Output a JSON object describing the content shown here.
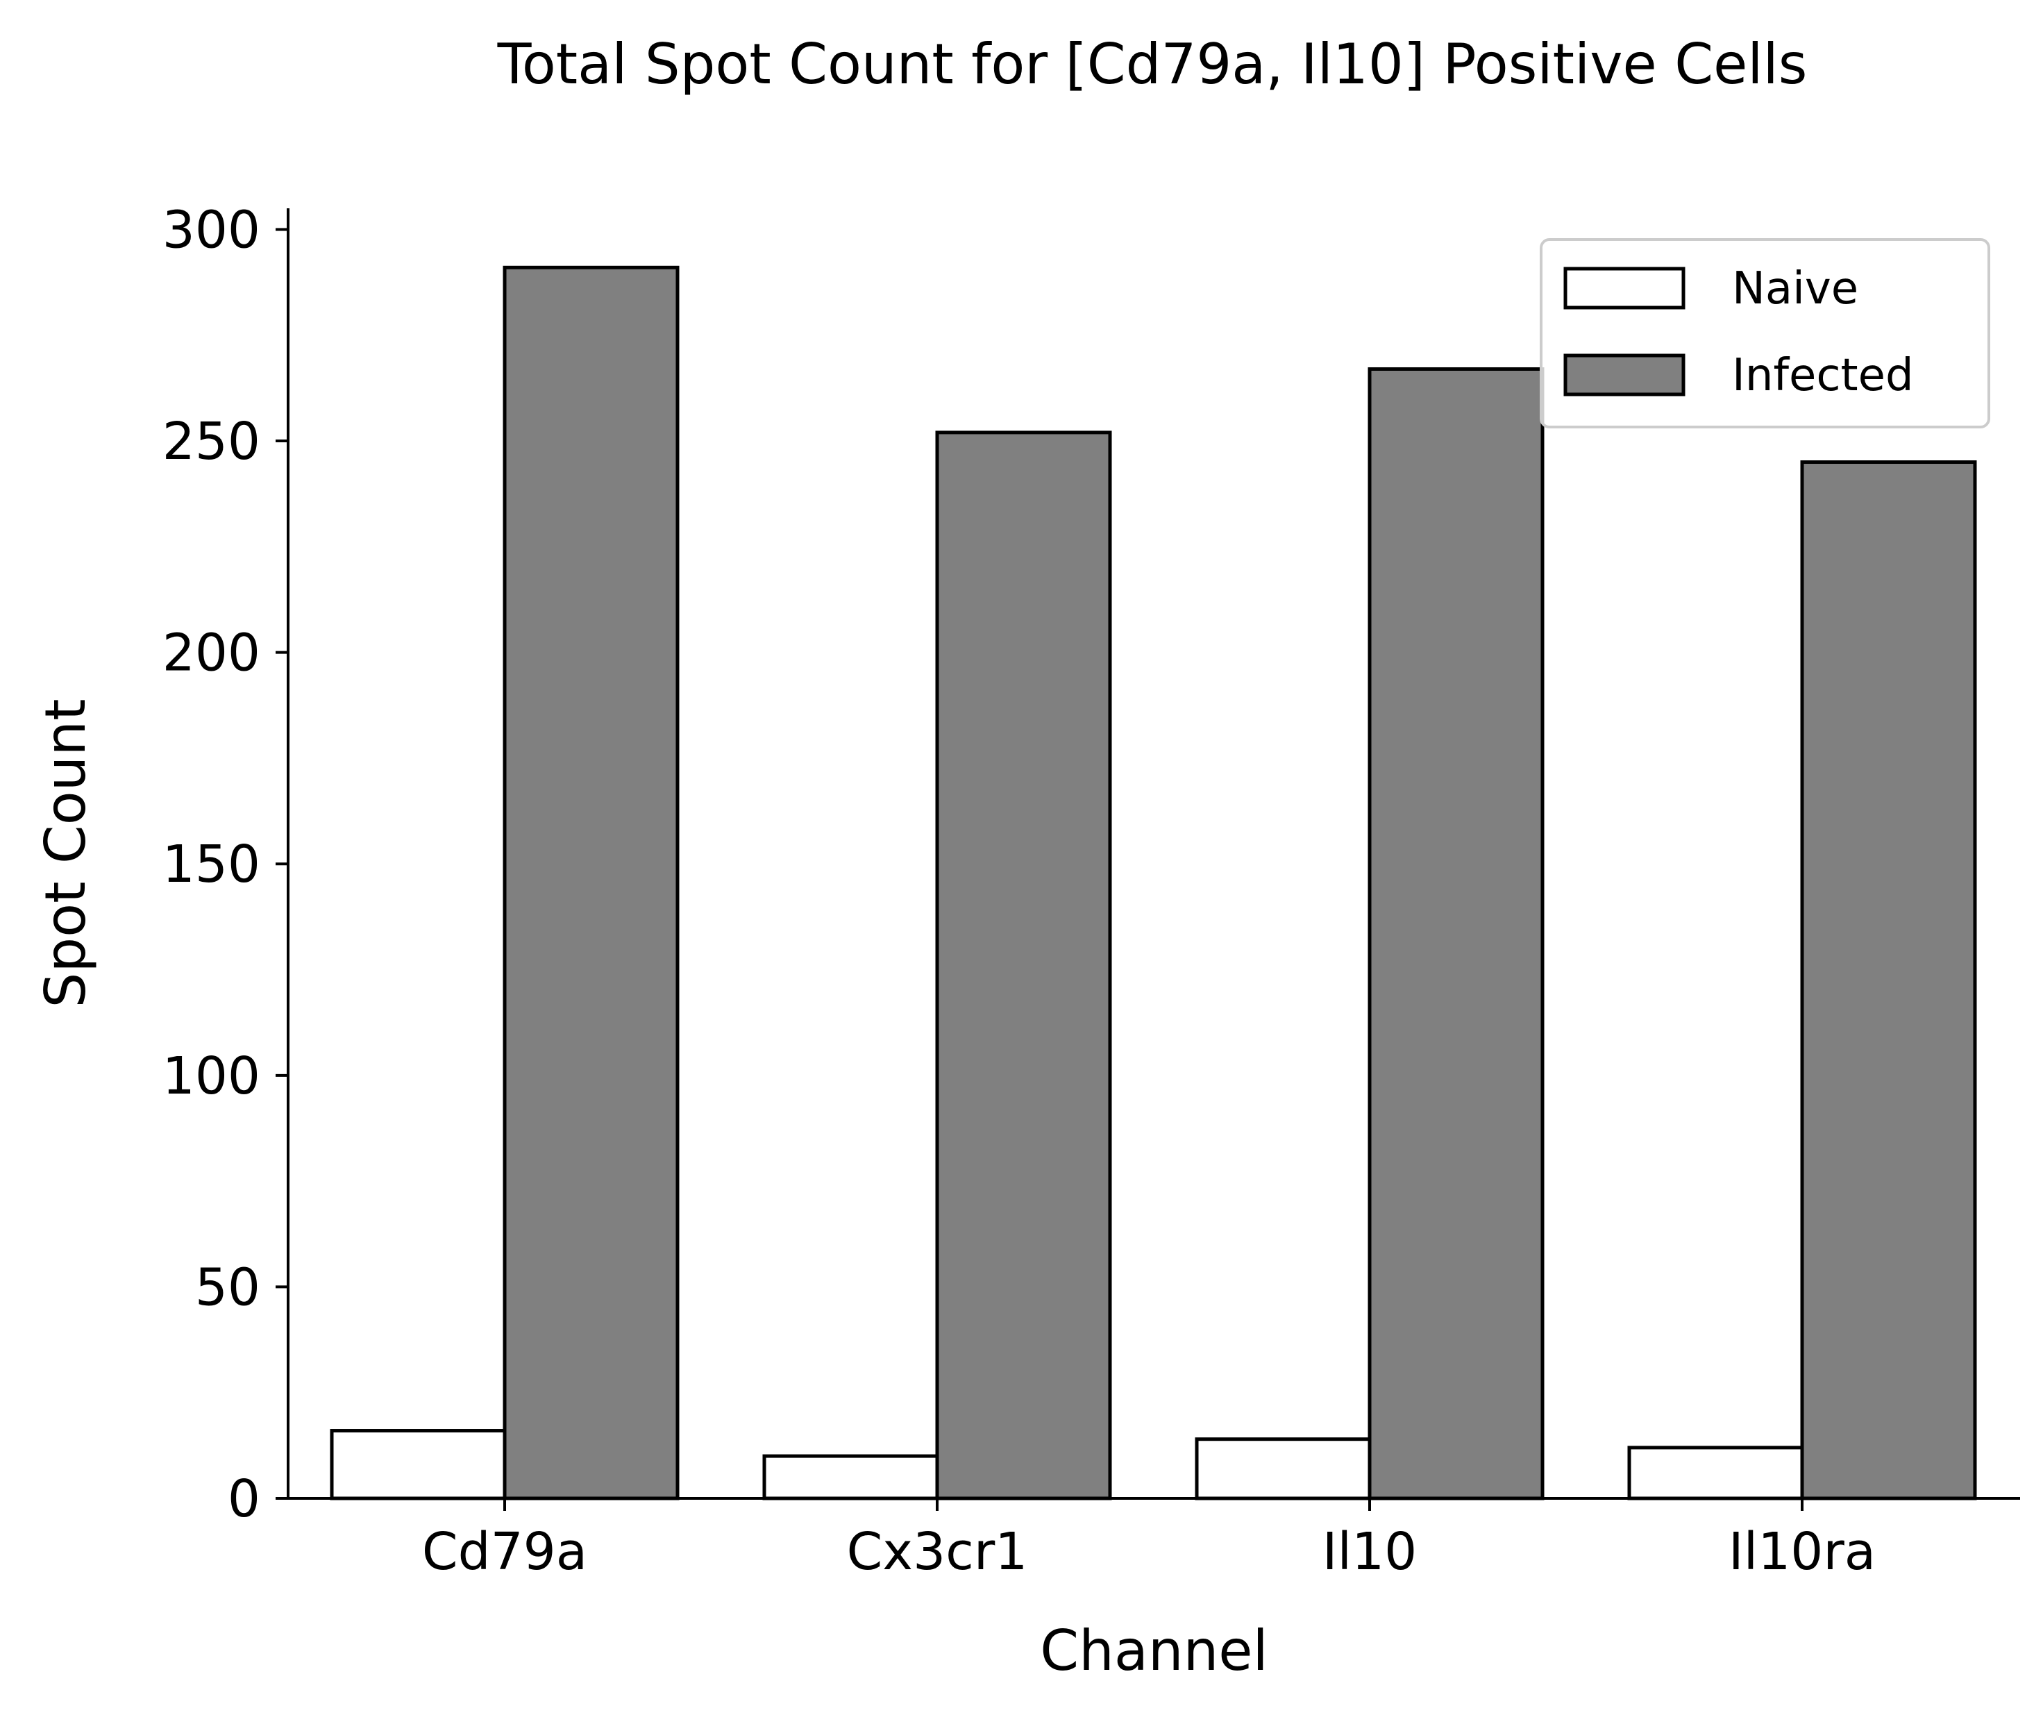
{
  "chart_data": {
    "type": "bar",
    "title": "Total Spot Count for [Cd79a, Il10] Positive Cells",
    "xlabel": "Channel",
    "ylabel": "Spot Count",
    "categories": [
      "Cd79a",
      "Cx3cr1",
      "Il10",
      "Il10ra"
    ],
    "series": [
      {
        "name": "Naive",
        "values": [
          16,
          10,
          14,
          12
        ],
        "color": "#ffffff"
      },
      {
        "name": "Infected",
        "values": [
          291,
          252,
          267,
          245
        ],
        "color": "#808080"
      }
    ],
    "ylim": [
      0,
      305
    ],
    "yticks": [
      0,
      50,
      100,
      150,
      200,
      250,
      300
    ],
    "grid": false,
    "legend_position": "top-right"
  }
}
